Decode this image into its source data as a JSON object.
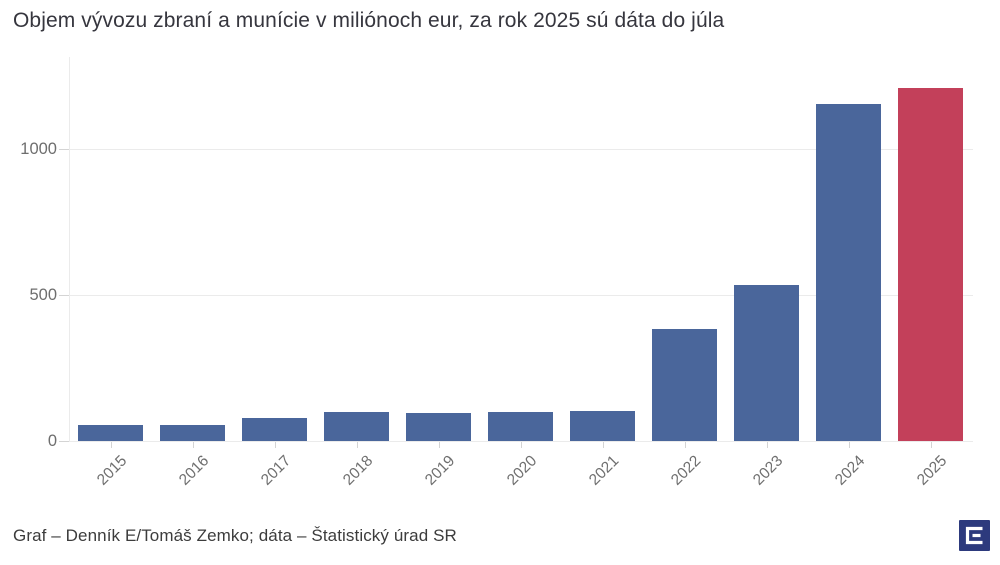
{
  "footer": {
    "credit": "Graf – Denník E/Tomáš Zemko; dáta – Štatistický úrad SR"
  },
  "logo": {
    "label": "Denník E logo",
    "bg_color": "#2d3a7d",
    "glyph_color": "#ffffff"
  },
  "chart_data": {
    "type": "bar",
    "title": "Objem vývozu zbraní a munície v miliónoch eur, za rok 2025 sú dáta do júla",
    "categories": [
      "2015",
      "2016",
      "2017",
      "2018",
      "2019",
      "2020",
      "2021",
      "2022",
      "2023",
      "2024",
      "2025"
    ],
    "values": [
      56,
      54,
      80,
      98,
      96,
      100,
      104,
      385,
      535,
      1155,
      1210
    ],
    "highlight_category": "2025",
    "highlight_index": 10,
    "yticks": [
      0,
      500,
      1000
    ],
    "ylim": [
      0,
      1315
    ],
    "xlabel": "",
    "ylabel": "",
    "grid": "horizontal",
    "legend": "none",
    "x_tick_rotation": -45,
    "colors": {
      "bar_default": "#4a669b",
      "bar_highlight": "#c3405a",
      "grid_line": "#ebebeb",
      "axis_line": "#ebebeb",
      "tick_mark": "#d4d4d4",
      "tick_label": "#6e6e6e",
      "title_text": "#36363e",
      "footer_text": "#3c3c3c"
    }
  }
}
